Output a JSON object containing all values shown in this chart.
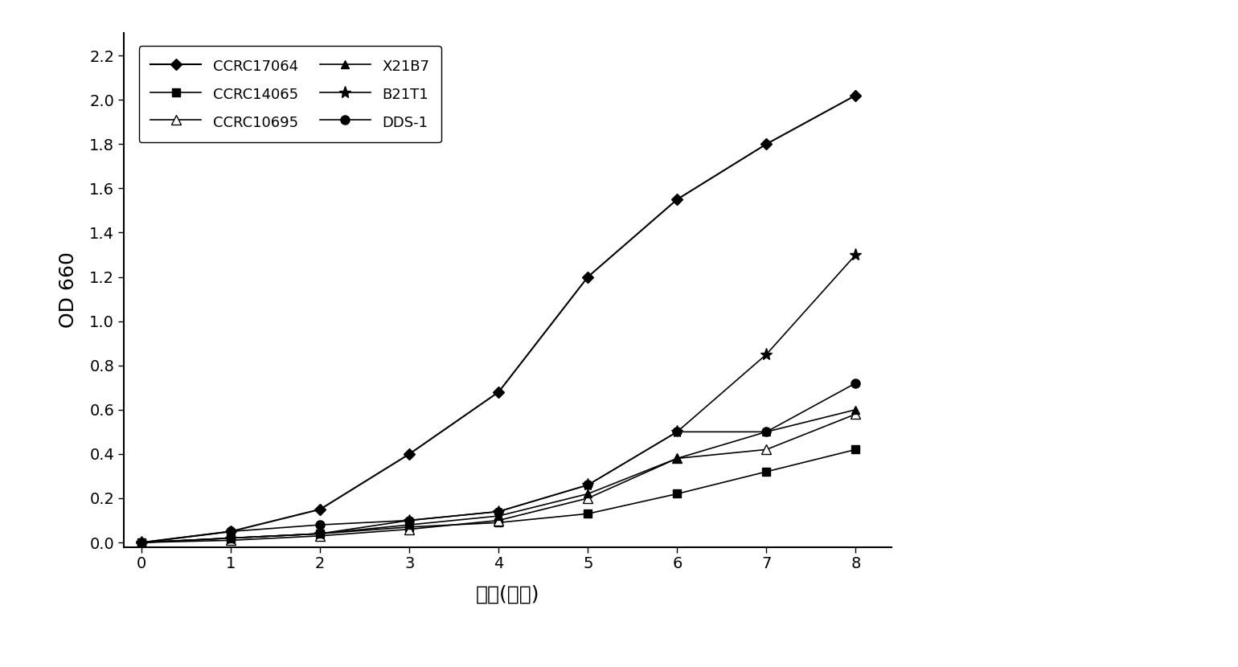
{
  "x": [
    0,
    1,
    2,
    3,
    4,
    5,
    6,
    7,
    8
  ],
  "series": [
    {
      "label": "CCRC17064",
      "values": [
        0.0,
        0.05,
        0.15,
        0.4,
        0.68,
        1.2,
        1.55,
        1.8,
        2.02
      ],
      "color": "#000000",
      "marker": "D",
      "markersize": 7,
      "linestyle": "-",
      "linewidth": 1.5,
      "markerfacecolor": "#000000"
    },
    {
      "label": "CCRC14065",
      "values": [
        0.0,
        0.02,
        0.04,
        0.07,
        0.09,
        0.13,
        0.22,
        0.32,
        0.42
      ],
      "color": "#000000",
      "marker": "s",
      "markersize": 7,
      "linestyle": "-",
      "linewidth": 1.2,
      "markerfacecolor": "#000000"
    },
    {
      "label": "CCRC10695",
      "values": [
        0.0,
        0.01,
        0.03,
        0.06,
        0.1,
        0.2,
        0.38,
        0.42,
        0.58
      ],
      "color": "#000000",
      "marker": "^",
      "markersize": 8,
      "linestyle": "-",
      "linewidth": 1.2,
      "markerfacecolor": "#ffffff"
    },
    {
      "label": "X21B7",
      "values": [
        0.0,
        0.02,
        0.04,
        0.08,
        0.12,
        0.22,
        0.38,
        0.5,
        0.6
      ],
      "color": "#000000",
      "marker": "^",
      "markersize": 7,
      "linestyle": "-",
      "linewidth": 1.2,
      "markerfacecolor": "#000000"
    },
    {
      "label": "B21T1",
      "values": [
        0.0,
        0.02,
        0.04,
        0.1,
        0.14,
        0.26,
        0.5,
        0.85,
        1.3
      ],
      "color": "#000000",
      "marker": "*",
      "markersize": 11,
      "linestyle": "-",
      "linewidth": 1.2,
      "markerfacecolor": "#000000"
    },
    {
      "label": "DDS-1",
      "values": [
        0.0,
        0.05,
        0.08,
        0.1,
        0.14,
        0.26,
        0.5,
        0.5,
        0.72
      ],
      "color": "#000000",
      "marker": "o",
      "markersize": 8,
      "linestyle": "-",
      "linewidth": 1.2,
      "markerfacecolor": "#000000"
    }
  ],
  "xlabel": "时间(小时)",
  "ylabel": "OD 660",
  "xlim": [
    -0.2,
    8.4
  ],
  "ylim": [
    -0.02,
    2.3
  ],
  "yticks": [
    0.0,
    0.2,
    0.4,
    0.6,
    0.8,
    1.0,
    1.2,
    1.4,
    1.6,
    1.8,
    2.0,
    2.2
  ],
  "xticks": [
    0,
    1,
    2,
    3,
    4,
    5,
    6,
    7,
    8
  ],
  "legend_order": [
    0,
    1,
    2,
    3,
    4,
    5
  ],
  "legend_cols": 2,
  "axis_fontsize": 18,
  "tick_fontsize": 14,
  "legend_fontsize": 13,
  "background_color": "#ffffff"
}
